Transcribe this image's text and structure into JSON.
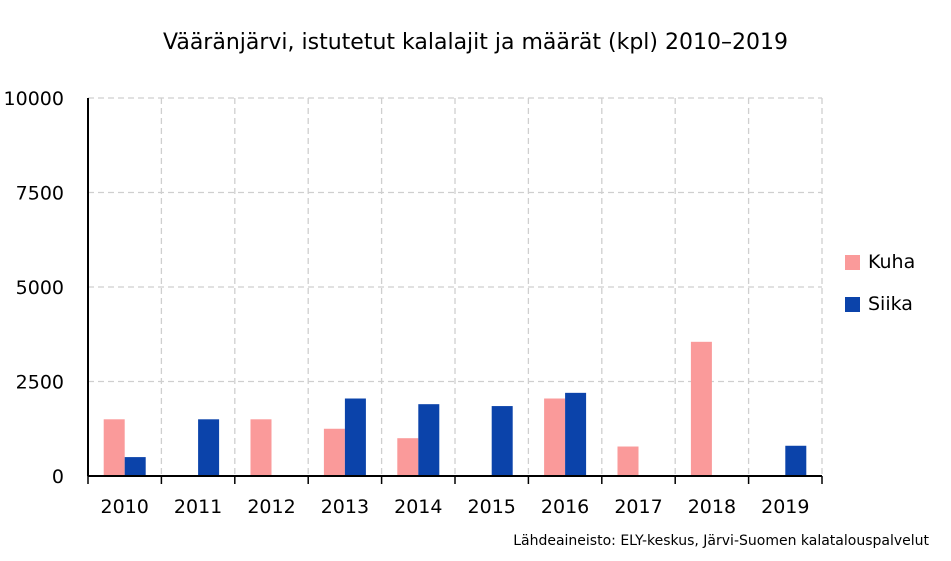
{
  "title": "Vääränjärvi, istutetut kalalajit ja määrät (kpl) 2010–2019",
  "source": "Lähdeaineisto: ELY-keskus, Järvi-Suomen kalatalouspalvelut",
  "colors": {
    "kuha": "#fa9a9a",
    "siika": "#0b43aa",
    "grid": "#cfcfcf",
    "axis": "#000000"
  },
  "chart_data": {
    "type": "bar",
    "title": "Vääränjärvi, istutetut kalalajit ja määrät (kpl) 2010–2019",
    "categories": [
      "2010",
      "2011",
      "2012",
      "2013",
      "2014",
      "2015",
      "2016",
      "2017",
      "2018",
      "2019"
    ],
    "series": [
      {
        "name": "Kuha",
        "values": [
          1500,
          0,
          1500,
          1250,
          1000,
          0,
          2050,
          780,
          3550,
          0
        ]
      },
      {
        "name": "Siika",
        "values": [
          500,
          1500,
          0,
          2050,
          1900,
          1850,
          2200,
          0,
          0,
          800
        ]
      }
    ],
    "ylim": [
      0,
      10000
    ],
    "yticks": [
      "0",
      "2500",
      "5000",
      "7500",
      "10000"
    ],
    "grid": true,
    "legend_position": "right"
  }
}
